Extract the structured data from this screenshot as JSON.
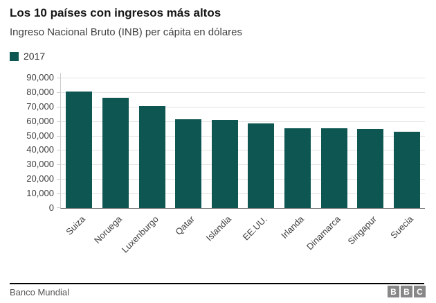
{
  "header": {
    "title": "Los 10 países con ingresos más altos",
    "subtitle": "Ingreso Nacional Bruto (INB) per cápita en dólares"
  },
  "legend": {
    "label": "2017"
  },
  "chart_data": {
    "type": "bar",
    "title": "Los 10 países con ingresos más altos",
    "subtitle": "Ingreso Nacional Bruto (INB) per cápita en dólares",
    "series_name": "2017",
    "categories": [
      "Suiza",
      "Noruega",
      "Luxenburgo",
      "Qatar",
      "Islandia",
      "EE.UU.",
      "Irlanda",
      "Dinamarca",
      "Singapur",
      "Suecia"
    ],
    "values": [
      80560,
      75990,
      70260,
      61070,
      60830,
      58270,
      55290,
      55220,
      54530,
      52590
    ],
    "xlabel": "",
    "ylabel": "",
    "ylim": [
      0,
      90000
    ],
    "ytick_step": 10000,
    "ytick_labels": [
      "0",
      "10,000",
      "20,000",
      "30,000",
      "40,000",
      "50,000",
      "60,000",
      "70,000",
      "80,000",
      "90,000"
    ],
    "grid": true,
    "legend_position": "top-left",
    "bar_color": "#0e5651",
    "x_label_rotation": -45
  },
  "footer": {
    "source": "Banco Mundial",
    "logo_letters": [
      "B",
      "B",
      "C"
    ]
  }
}
